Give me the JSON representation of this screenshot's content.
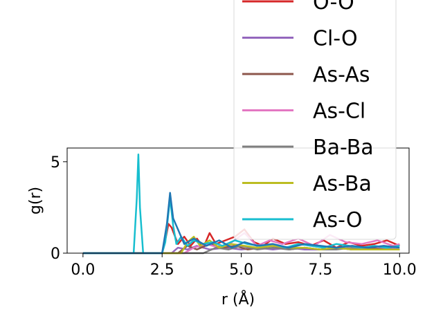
{
  "chart_data": {
    "type": "line",
    "title": "",
    "xlabel": "r (Å)",
    "ylabel": "g(r)",
    "xlim": [
      -0.5,
      10.3
    ],
    "ylim": [
      0,
      5.75
    ],
    "xticks": [
      0.0,
      2.5,
      5.0,
      7.5,
      10.0
    ],
    "xtick_labels": [
      "0.0",
      "2.5",
      "5.0",
      "7.5",
      "10.0"
    ],
    "yticks": [
      0,
      5
    ],
    "ytick_labels": [
      "0",
      "5"
    ],
    "grid": false,
    "legend_position": "top-right (overflowing above the axes)",
    "series": [
      {
        "name": "O-O",
        "color": "#d62728",
        "x": [
          0.0,
          2.5,
          2.6,
          2.7,
          2.8,
          3.0,
          3.2,
          3.4,
          3.6,
          3.8,
          4.0,
          4.2,
          4.5,
          4.8,
          5.1,
          5.4,
          5.7,
          6.0,
          6.4,
          6.8,
          7.2,
          7.6,
          8.0,
          8.4,
          8.8,
          9.2,
          9.6,
          10.0
        ],
        "y": [
          0.0,
          0.0,
          0.7,
          1.6,
          1.4,
          0.5,
          0.9,
          0.4,
          0.8,
          0.3,
          1.1,
          0.5,
          0.7,
          0.9,
          1.3,
          0.6,
          0.4,
          0.8,
          0.5,
          0.6,
          0.4,
          0.7,
          0.3,
          0.6,
          0.4,
          0.5,
          0.7,
          0.4
        ]
      },
      {
        "name": "Cl-O",
        "color": "#9467bd",
        "x": [
          0.0,
          2.8,
          3.0,
          3.3,
          3.6,
          4.0,
          4.5,
          5.0,
          5.5,
          6.0,
          6.5,
          7.0,
          7.5,
          8.0,
          8.5,
          9.0,
          9.5,
          10.0
        ],
        "y": [
          0.0,
          0.0,
          0.3,
          0.2,
          0.4,
          0.2,
          0.3,
          0.2,
          0.3,
          0.2,
          0.3,
          0.2,
          0.2,
          0.3,
          0.2,
          0.2,
          0.3,
          0.2
        ]
      },
      {
        "name": "As-As",
        "color": "#8c564b",
        "x": [
          0.0,
          3.0,
          3.3,
          3.6,
          4.0,
          4.4,
          4.8,
          5.2,
          5.6,
          6.0,
          6.5,
          7.0,
          7.5,
          8.0,
          8.5,
          9.0,
          9.5,
          10.0
        ],
        "y": [
          0.0,
          0.0,
          0.4,
          0.2,
          0.5,
          0.3,
          0.4,
          0.2,
          0.3,
          0.4,
          0.2,
          0.3,
          0.2,
          0.3,
          0.2,
          0.3,
          0.2,
          0.2
        ]
      },
      {
        "name": "As-Cl",
        "color": "#e377c2",
        "x": [
          0.0,
          3.2,
          3.5,
          3.9,
          4.3,
          4.7,
          5.1,
          5.5,
          5.9,
          6.3,
          6.8,
          7.3,
          7.8,
          8.3,
          8.8,
          9.3,
          9.8,
          10.0
        ],
        "y": [
          0.0,
          0.0,
          0.3,
          0.5,
          0.3,
          0.6,
          1.1,
          0.4,
          0.7,
          0.5,
          0.8,
          0.4,
          1.0,
          0.6,
          0.5,
          0.7,
          0.4,
          0.5
        ]
      },
      {
        "name": "Ba-Ba",
        "color": "#7f7f7f",
        "x": [
          0.0,
          3.8,
          4.2,
          4.6,
          5.0,
          5.5,
          6.0,
          6.5,
          7.0,
          7.5,
          8.0,
          8.5,
          9.0,
          9.5,
          10.0
        ],
        "y": [
          0.0,
          0.0,
          0.3,
          0.2,
          0.4,
          0.2,
          0.3,
          0.2,
          0.3,
          0.2,
          0.2,
          0.3,
          0.2,
          0.2,
          0.2
        ]
      },
      {
        "name": "As-Ba",
        "color": "#bcbd22",
        "x": [
          0.0,
          3.1,
          3.3,
          3.5,
          3.7,
          4.0,
          4.3,
          4.7,
          5.1,
          5.5,
          6.0,
          6.5,
          7.0,
          7.5,
          8.0,
          8.5,
          9.0,
          9.5,
          10.0
        ],
        "y": [
          0.0,
          0.0,
          0.6,
          0.9,
          0.4,
          0.7,
          0.3,
          0.5,
          0.4,
          0.3,
          0.4,
          0.3,
          0.3,
          0.2,
          0.3,
          0.2,
          0.2,
          0.2,
          0.2
        ]
      },
      {
        "name": "As-O",
        "color": "#17becf",
        "x": [
          0.0,
          1.6,
          1.7,
          1.75,
          1.8,
          1.9,
          2.5,
          2.6,
          2.75,
          2.85,
          2.95,
          3.1,
          3.3,
          3.5,
          3.8,
          4.1,
          4.4,
          4.8,
          5.2,
          5.6,
          6.0,
          6.4,
          6.8,
          7.2,
          7.6,
          8.0,
          8.4,
          8.8,
          9.2,
          9.6,
          10.0
        ],
        "y": [
          0.0,
          0.0,
          3.0,
          5.4,
          2.5,
          0.0,
          0.0,
          0.6,
          3.0,
          1.5,
          0.5,
          0.9,
          0.4,
          0.7,
          0.5,
          0.6,
          0.4,
          0.7,
          0.5,
          0.4,
          0.5,
          0.3,
          0.5,
          0.4,
          0.3,
          0.5,
          0.4,
          0.3,
          0.4,
          0.3,
          0.4
        ]
      },
      {
        "name": "",
        "color": "#1f77b4",
        "x": [
          0.0,
          2.5,
          2.65,
          2.75,
          2.85,
          3.0,
          3.2,
          3.5,
          3.9,
          4.3,
          4.7,
          5.1,
          5.5,
          6.0,
          6.5,
          7.0,
          7.5,
          8.0,
          8.5,
          9.0,
          9.5,
          10.0
        ],
        "y": [
          0.0,
          0.0,
          1.6,
          3.3,
          1.9,
          1.3,
          0.5,
          0.8,
          0.4,
          0.7,
          0.3,
          0.6,
          0.4,
          0.5,
          0.3,
          0.5,
          0.4,
          0.3,
          0.4,
          0.3,
          0.4,
          0.3
        ]
      }
    ]
  },
  "legend": {
    "entries": [
      {
        "label": "O-O",
        "color": "#d62728"
      },
      {
        "label": "Cl-O",
        "color": "#9467bd"
      },
      {
        "label": "As-As",
        "color": "#8c564b"
      },
      {
        "label": "As-Cl",
        "color": "#e377c2"
      },
      {
        "label": "Ba-Ba",
        "color": "#7f7f7f"
      },
      {
        "label": "As-Ba",
        "color": "#bcbd22"
      },
      {
        "label": "As-O",
        "color": "#17becf"
      }
    ]
  }
}
